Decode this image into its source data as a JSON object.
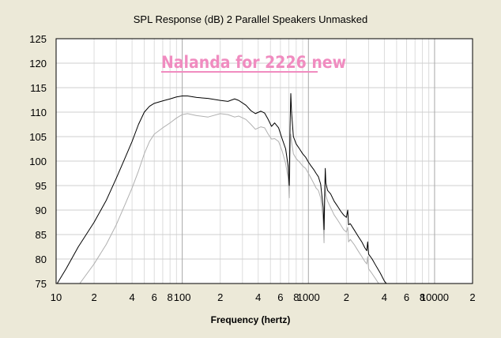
{
  "chart_data": {
    "type": "line",
    "title": "SPL Response (dB)   2 Parallel Speakers   Unmasked",
    "xlabel": "Frequency (hertz)",
    "ylabel": "",
    "xscale": "log",
    "xlim": [
      10,
      20000
    ],
    "ylim": [
      75,
      125
    ],
    "y_ticks": [
      75,
      80,
      85,
      90,
      95,
      100,
      105,
      110,
      115,
      120,
      125
    ],
    "x_tick_labels": [
      {
        "value": 10,
        "label": "10"
      },
      {
        "value": 20,
        "label": "2"
      },
      {
        "value": 40,
        "label": "4"
      },
      {
        "value": 60,
        "label": "6"
      },
      {
        "value": 80,
        "label": "8"
      },
      {
        "value": 100,
        "label": "100"
      },
      {
        "value": 200,
        "label": "2"
      },
      {
        "value": 400,
        "label": "4"
      },
      {
        "value": 600,
        "label": "6"
      },
      {
        "value": 800,
        "label": "8"
      },
      {
        "value": 1000,
        "label": "1000"
      },
      {
        "value": 2000,
        "label": "2"
      },
      {
        "value": 4000,
        "label": "4"
      },
      {
        "value": 6000,
        "label": "6"
      },
      {
        "value": 8000,
        "label": "8"
      },
      {
        "value": 10000,
        "label": "10000"
      },
      {
        "value": 20000,
        "label": "2"
      }
    ],
    "grid": true,
    "annotation": {
      "text": "Nalanda for 2226 new",
      "color": "#f08cc0"
    },
    "series": [
      {
        "color": "#000000",
        "points": [
          [
            10.2,
            75
          ],
          [
            12,
            78
          ],
          [
            15,
            82.5
          ],
          [
            20,
            87.5
          ],
          [
            25,
            92
          ],
          [
            30,
            96.5
          ],
          [
            35,
            100.5
          ],
          [
            40,
            104
          ],
          [
            45,
            107.5
          ],
          [
            50,
            110
          ],
          [
            55,
            111.2
          ],
          [
            60,
            111.8
          ],
          [
            70,
            112.3
          ],
          [
            80,
            112.7
          ],
          [
            90,
            113.1
          ],
          [
            100,
            113.3
          ],
          [
            110,
            113.3
          ],
          [
            130,
            113
          ],
          [
            160,
            112.8
          ],
          [
            200,
            112.4
          ],
          [
            230,
            112.2
          ],
          [
            260,
            112.7
          ],
          [
            280,
            112.4
          ],
          [
            320,
            111.4
          ],
          [
            350,
            110.3
          ],
          [
            380,
            109.7
          ],
          [
            420,
            110.2
          ],
          [
            450,
            109.8
          ],
          [
            480,
            108.5
          ],
          [
            510,
            107.1
          ],
          [
            540,
            107.8
          ],
          [
            580,
            106.8
          ],
          [
            620,
            104.5
          ],
          [
            660,
            102.5
          ],
          [
            690,
            99
          ],
          [
            705,
            95
          ],
          [
            715,
            107
          ],
          [
            725,
            113.8
          ],
          [
            735,
            110
          ],
          [
            760,
            105
          ],
          [
            800,
            103.5
          ],
          [
            850,
            102.5
          ],
          [
            900,
            101.5
          ],
          [
            950,
            100.8
          ],
          [
            1000,
            99.8
          ],
          [
            1050,
            99
          ],
          [
            1100,
            98.3
          ],
          [
            1150,
            97.5
          ],
          [
            1200,
            96.8
          ],
          [
            1250,
            95.3
          ],
          [
            1290,
            92
          ],
          [
            1310,
            90.5
          ],
          [
            1330,
            86
          ],
          [
            1345,
            93
          ],
          [
            1360,
            98.5
          ],
          [
            1375,
            95.5
          ],
          [
            1420,
            94
          ],
          [
            1500,
            93.3
          ],
          [
            1600,
            91.8
          ],
          [
            1700,
            90.8
          ],
          [
            1800,
            89.8
          ],
          [
            1900,
            89
          ],
          [
            2000,
            88.5
          ],
          [
            2050,
            90
          ],
          [
            2080,
            87
          ],
          [
            2150,
            87.2
          ],
          [
            2300,
            86
          ],
          [
            2500,
            84.5
          ],
          [
            2650,
            83.5
          ],
          [
            2800,
            82.3
          ],
          [
            2900,
            81.7
          ],
          [
            2950,
            83.5
          ],
          [
            3000,
            81
          ],
          [
            3200,
            80
          ],
          [
            3400,
            78.8
          ],
          [
            3700,
            77.2
          ],
          [
            4000,
            75.5
          ],
          [
            4150,
            75
          ]
        ]
      },
      {
        "color": "#b0b0b0",
        "points": [
          [
            15.4,
            75
          ],
          [
            20,
            79
          ],
          [
            25,
            83
          ],
          [
            30,
            87
          ],
          [
            35,
            91
          ],
          [
            40,
            94.5
          ],
          [
            45,
            98
          ],
          [
            50,
            101.5
          ],
          [
            55,
            104
          ],
          [
            60,
            105.5
          ],
          [
            70,
            106.8
          ],
          [
            80,
            107.8
          ],
          [
            90,
            108.8
          ],
          [
            100,
            109.5
          ],
          [
            110,
            109.7
          ],
          [
            130,
            109.3
          ],
          [
            160,
            109
          ],
          [
            200,
            109.7
          ],
          [
            230,
            109.5
          ],
          [
            260,
            109
          ],
          [
            280,
            109.2
          ],
          [
            320,
            108.5
          ],
          [
            350,
            107.5
          ],
          [
            380,
            106.5
          ],
          [
            420,
            107
          ],
          [
            450,
            106.8
          ],
          [
            480,
            105.5
          ],
          [
            510,
            104.5
          ],
          [
            540,
            104.6
          ],
          [
            580,
            104
          ],
          [
            620,
            102
          ],
          [
            660,
            99.5
          ],
          [
            690,
            96.5
          ],
          [
            705,
            92.5
          ],
          [
            715,
            101
          ],
          [
            725,
            105.5
          ],
          [
            735,
            104
          ],
          [
            760,
            101.5
          ],
          [
            800,
            100.5
          ],
          [
            850,
            99.8
          ],
          [
            900,
            99
          ],
          [
            950,
            98.5
          ],
          [
            1000,
            97.5
          ],
          [
            1050,
            96.5
          ],
          [
            1100,
            95.5
          ],
          [
            1150,
            94.5
          ],
          [
            1200,
            94
          ],
          [
            1250,
            92.5
          ],
          [
            1290,
            89.5
          ],
          [
            1310,
            87.5
          ],
          [
            1330,
            83.3
          ],
          [
            1345,
            90
          ],
          [
            1360,
            95
          ],
          [
            1375,
            93
          ],
          [
            1420,
            91.8
          ],
          [
            1500,
            90.5
          ],
          [
            1600,
            89
          ],
          [
            1700,
            88
          ],
          [
            1800,
            87
          ],
          [
            1900,
            86
          ],
          [
            2000,
            85.5
          ],
          [
            2050,
            86.5
          ],
          [
            2080,
            83.5
          ],
          [
            2150,
            84
          ],
          [
            2300,
            83
          ],
          [
            2500,
            81.5
          ],
          [
            2650,
            80.5
          ],
          [
            2800,
            79.5
          ],
          [
            2900,
            79
          ],
          [
            2950,
            80.5
          ],
          [
            3000,
            78
          ],
          [
            3200,
            77
          ],
          [
            3400,
            76
          ],
          [
            3600,
            75
          ]
        ]
      }
    ]
  }
}
